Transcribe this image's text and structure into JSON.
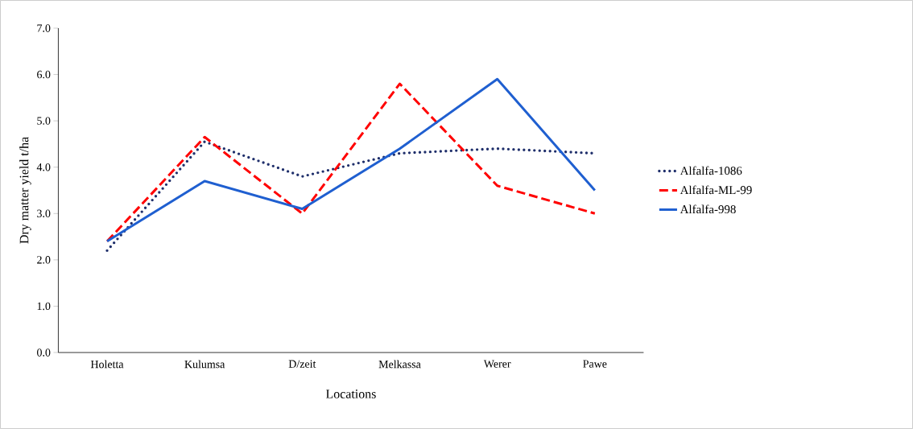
{
  "chart_data": {
    "type": "line",
    "xlabel": "Locations",
    "ylabel": "Dry matter yield t/ha",
    "categories": [
      "Holetta",
      "Kulumsa",
      "D/zeit",
      "Melkassa",
      "Werer",
      "Pawe"
    ],
    "series": [
      {
        "name": "Alfalfa-1086",
        "color": "#1f2f6b",
        "line_style": "dotted",
        "values": [
          2.2,
          4.55,
          3.8,
          4.3,
          4.4,
          4.3
        ]
      },
      {
        "name": "Alfalfa-ML-99",
        "color": "#ff0000",
        "line_style": "dashed",
        "values": [
          2.4,
          4.65,
          3.0,
          5.8,
          3.6,
          3.0
        ]
      },
      {
        "name": "Alfalfa-998",
        "color": "#1f5fd0",
        "line_style": "solid",
        "values": [
          2.4,
          3.7,
          3.1,
          4.4,
          5.9,
          3.5
        ]
      }
    ],
    "ylim": [
      0,
      7
    ],
    "yticks": [
      {
        "value": 0,
        "label": "0.0"
      },
      {
        "value": 1,
        "label": "1.0"
      },
      {
        "value": 2,
        "label": "2.0"
      },
      {
        "value": 3,
        "label": "3.0"
      },
      {
        "value": 4,
        "label": "4.0"
      },
      {
        "value": 5,
        "label": "5.0"
      },
      {
        "value": 6,
        "label": "6.0"
      },
      {
        "value": 7,
        "label": "7.0"
      }
    ],
    "grid": false,
    "legend": "right",
    "marker": "none"
  }
}
